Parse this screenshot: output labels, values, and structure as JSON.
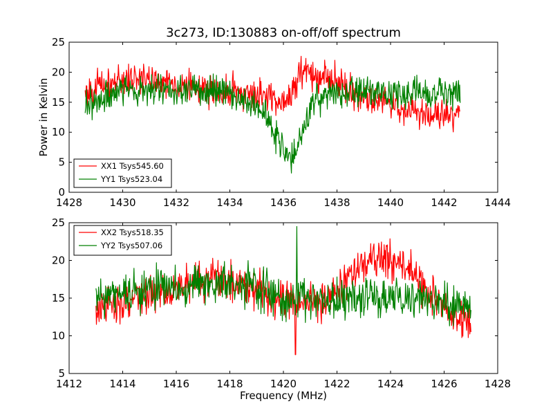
{
  "chart_data": [
    {
      "type": "line",
      "title": "3c273, ID:130883 on-off/off spectrum",
      "xlabel": "",
      "ylabel": "Power in Kelvin",
      "xlim": [
        1428,
        1444
      ],
      "ylim": [
        0,
        25
      ],
      "xticks": [
        "1428",
        "1430",
        "1432",
        "1434",
        "1436",
        "1438",
        "1440",
        "1442",
        "1444"
      ],
      "yticks": [
        "0",
        "5",
        "10",
        "15",
        "20",
        "25"
      ],
      "legend_position": "lower-left",
      "x_range": [
        1428.6,
        1442.6
      ],
      "series": [
        {
          "name": "XX1 Tsys545.60",
          "color": "#ff0000",
          "x": [
            1428.6,
            1429.0,
            1429.5,
            1430.0,
            1430.5,
            1431.0,
            1431.5,
            1432.0,
            1432.5,
            1433.0,
            1433.5,
            1434.0,
            1434.5,
            1435.0,
            1435.5,
            1436.0,
            1436.3,
            1436.6,
            1437.0,
            1437.5,
            1438.0,
            1438.5,
            1439.0,
            1439.5,
            1440.0,
            1440.5,
            1441.0,
            1441.5,
            1442.0,
            1442.6
          ],
          "values": [
            16.5,
            17.5,
            18.0,
            18.8,
            19.0,
            18.8,
            18.5,
            18.0,
            17.5,
            17.0,
            17.0,
            17.0,
            16.5,
            16.0,
            16.0,
            15.5,
            16.0,
            20.0,
            20.0,
            19.5,
            18.5,
            17.0,
            16.0,
            15.5,
            15.0,
            14.0,
            13.0,
            12.8,
            12.8,
            13.5
          ]
        },
        {
          "name": "YY1 Tsys523.04",
          "color": "#008000",
          "x": [
            1428.6,
            1429.0,
            1429.5,
            1430.0,
            1430.5,
            1431.0,
            1431.5,
            1432.0,
            1432.5,
            1433.0,
            1433.5,
            1434.0,
            1434.5,
            1435.0,
            1435.3,
            1435.6,
            1435.9,
            1436.1,
            1436.3,
            1436.5,
            1436.8,
            1437.0,
            1437.5,
            1438.0,
            1438.5,
            1439.0,
            1439.5,
            1440.0,
            1440.5,
            1441.0,
            1441.5,
            1442.0,
            1442.6
          ],
          "values": [
            15.0,
            15.5,
            16.0,
            16.5,
            16.8,
            17.0,
            17.0,
            17.0,
            16.8,
            16.8,
            16.8,
            16.5,
            15.5,
            14.5,
            13.0,
            10.5,
            8.0,
            6.0,
            4.5,
            7.5,
            11.0,
            13.5,
            16.0,
            16.5,
            16.5,
            16.5,
            16.5,
            16.5,
            16.5,
            17.0,
            16.5,
            16.5,
            16.5
          ]
        }
      ]
    },
    {
      "type": "line",
      "title": "",
      "xlabel": "Frequency (MHz)",
      "ylabel": "",
      "xlim": [
        1412,
        1428
      ],
      "ylim": [
        5,
        25
      ],
      "xticks": [
        "1412",
        "1414",
        "1416",
        "1418",
        "1420",
        "1422",
        "1424",
        "1426",
        "1428"
      ],
      "yticks": [
        "5",
        "10",
        "15",
        "20",
        "25"
      ],
      "legend_position": "upper-left",
      "x_range": [
        1413.0,
        1427.0
      ],
      "series": [
        {
          "name": "XX2 Tsys518.35",
          "color": "#ff0000",
          "x": [
            1413.0,
            1413.5,
            1414.0,
            1414.5,
            1415.0,
            1415.5,
            1416.0,
            1416.5,
            1417.0,
            1417.5,
            1418.0,
            1418.5,
            1419.0,
            1419.5,
            1420.0,
            1420.5,
            1421.0,
            1421.5,
            1422.0,
            1422.5,
            1423.0,
            1423.5,
            1424.0,
            1424.5,
            1425.0,
            1425.5,
            1426.0,
            1426.5,
            1427.0
          ],
          "values": [
            13.0,
            14.0,
            14.5,
            15.0,
            15.5,
            16.0,
            16.5,
            17.0,
            17.5,
            17.5,
            17.5,
            17.0,
            16.5,
            15.5,
            15.0,
            14.5,
            14.5,
            15.0,
            16.0,
            18.0,
            19.5,
            20.0,
            20.0,
            19.5,
            17.5,
            15.5,
            13.5,
            12.0,
            11.5
          ]
        },
        {
          "name": "YY2 Tsys507.06",
          "color": "#008000",
          "x": [
            1413.0,
            1413.5,
            1414.0,
            1414.5,
            1415.0,
            1415.5,
            1416.0,
            1416.5,
            1417.0,
            1417.5,
            1418.0,
            1418.5,
            1419.0,
            1419.5,
            1420.0,
            1420.5,
            1421.0,
            1421.5,
            1422.0,
            1422.5,
            1423.0,
            1423.5,
            1424.0,
            1424.5,
            1425.0,
            1425.5,
            1426.0,
            1426.5,
            1427.0
          ],
          "values": [
            15.0,
            15.5,
            15.5,
            16.0,
            16.0,
            16.5,
            16.5,
            17.0,
            17.0,
            17.0,
            17.0,
            16.5,
            16.0,
            15.5,
            15.0,
            15.0,
            15.0,
            15.0,
            15.0,
            15.0,
            15.0,
            15.0,
            15.0,
            15.0,
            15.0,
            15.0,
            14.5,
            14.0,
            13.5
          ]
        }
      ]
    }
  ]
}
